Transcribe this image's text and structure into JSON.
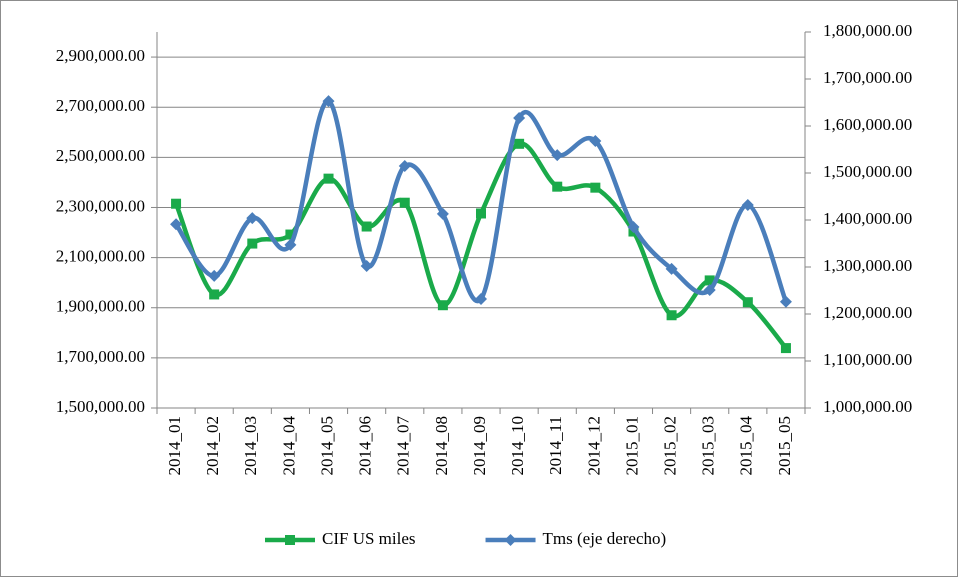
{
  "chart_data": {
    "type": "line",
    "categories": [
      "2014_01",
      "2014_02",
      "2014_03",
      "2014_04",
      "2014_05",
      "2014_06",
      "2014_07",
      "2014_08",
      "2014_09",
      "2014_10",
      "2014_11",
      "2014_12",
      "2015_01",
      "2015_02",
      "2015_03",
      "2015_04",
      "2015_05"
    ],
    "series": [
      {
        "name": "CIF US miles",
        "color": "#1aaa4a",
        "marker": "square",
        "smooth": true,
        "values": [
          2315000,
          1953000,
          2156000,
          2192000,
          2415000,
          2224000,
          2319000,
          1910000,
          2276000,
          2554000,
          2383000,
          2379000,
          2204000,
          1870000,
          2009000,
          1922000,
          1739000
        ]
      },
      {
        "name": "Tms (eje derecho)",
        "color": "#4a7ebb",
        "marker": "diamond",
        "smooth": true,
        "axis": "y2",
        "values": [
          1391000,
          1281000,
          1404000,
          1347000,
          1653000,
          1302000,
          1515000,
          1413000,
          1232000,
          1617000,
          1538000,
          1568000,
          1385000,
          1296000,
          1251000,
          1432000,
          1226000
        ]
      }
    ],
    "ylim": [
      1500000,
      3000000
    ],
    "yticks": [
      {
        "value": 1500000,
        "label": "1,500,000.00"
      },
      {
        "value": 1700000,
        "label": "1,700,000.00"
      },
      {
        "value": 1900000,
        "label": "1,900,000.00"
      },
      {
        "value": 2100000,
        "label": "2,100,000.00"
      },
      {
        "value": 2300000,
        "label": "2,300,000.00"
      },
      {
        "value": 2500000,
        "label": "2,500,000.00"
      },
      {
        "value": 2700000,
        "label": "2,700,000.00"
      },
      {
        "value": 2900000,
        "label": "2,900,000.00"
      }
    ],
    "y2lim": [
      1000000,
      1800000
    ],
    "y2ticks": [
      {
        "value": 1000000,
        "label": "1,000,000.00"
      },
      {
        "value": 1100000,
        "label": "1,100,000.00"
      },
      {
        "value": 1200000,
        "label": "1,200,000.00"
      },
      {
        "value": 1300000,
        "label": "1,300,000.00"
      },
      {
        "value": 1400000,
        "label": "1,400,000.00"
      },
      {
        "value": 1500000,
        "label": "1,500,000.00"
      },
      {
        "value": 1600000,
        "label": "1,600,000.00"
      },
      {
        "value": 1700000,
        "label": "1,700,000.00"
      },
      {
        "value": 1800000,
        "label": "1,800,000.00"
      }
    ],
    "grid": true,
    "legend": "bottom"
  }
}
